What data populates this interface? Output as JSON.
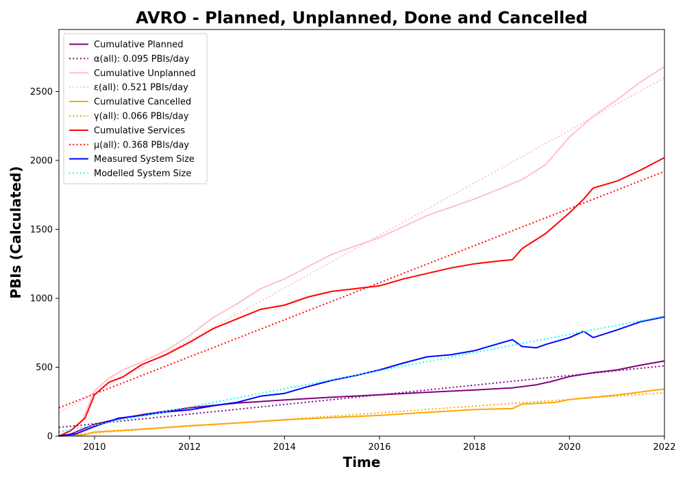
{
  "chart_data": {
    "type": "line",
    "title": "AVRO - Planned, Unplanned, Done  and Cancelled",
    "xlabel": "Time",
    "ylabel": "PBIs (Calculated)",
    "xlim": [
      2009.25,
      2022.0
    ],
    "ylim": [
      0,
      2950
    ],
    "xticks": [
      2010,
      2012,
      2014,
      2016,
      2018,
      2020,
      2022
    ],
    "yticks": [
      0,
      500,
      1000,
      1500,
      2000,
      2500
    ],
    "grid": false,
    "legend_position": "upper-left",
    "series": [
      {
        "name": "Cumulative Planned",
        "color": "#800080",
        "style": "solid",
        "points": [
          [
            2009.25,
            0
          ],
          [
            2009.5,
            15
          ],
          [
            2010,
            85
          ],
          [
            2010.5,
            125
          ],
          [
            2011,
            155
          ],
          [
            2011.5,
            180
          ],
          [
            2012,
            205
          ],
          [
            2013,
            240
          ],
          [
            2014,
            262
          ],
          [
            2015,
            282
          ],
          [
            2016,
            300
          ],
          [
            2017,
            318
          ],
          [
            2018,
            335
          ],
          [
            2018.8,
            350
          ],
          [
            2019.3,
            372
          ],
          [
            2019.6,
            395
          ],
          [
            2020,
            432
          ],
          [
            2020.5,
            460
          ],
          [
            2021,
            480
          ],
          [
            2021.5,
            515
          ],
          [
            2022,
            545
          ]
        ]
      },
      {
        "name": "α(all): 0.095 PBIs/day",
        "color": "#800080",
        "style": "dotted",
        "points": [
          [
            2009.25,
            63
          ],
          [
            2022,
            510
          ]
        ]
      },
      {
        "name": "Cumulative Unplanned",
        "color": "#ffc0cb",
        "style": "solid",
        "points": [
          [
            2009.25,
            0
          ],
          [
            2009.5,
            40
          ],
          [
            2009.75,
            120
          ],
          [
            2010,
            330
          ],
          [
            2010.3,
            420
          ],
          [
            2010.6,
            480
          ],
          [
            2011,
            540
          ],
          [
            2011.5,
            620
          ],
          [
            2012,
            730
          ],
          [
            2012.5,
            860
          ],
          [
            2013,
            960
          ],
          [
            2013.5,
            1070
          ],
          [
            2014,
            1140
          ],
          [
            2014.5,
            1230
          ],
          [
            2015,
            1320
          ],
          [
            2015.5,
            1380
          ],
          [
            2016,
            1440
          ],
          [
            2016.5,
            1520
          ],
          [
            2017,
            1600
          ],
          [
            2017.5,
            1660
          ],
          [
            2018,
            1720
          ],
          [
            2018.5,
            1790
          ],
          [
            2019,
            1860
          ],
          [
            2019.5,
            1970
          ],
          [
            2020,
            2170
          ],
          [
            2020.5,
            2320
          ],
          [
            2021,
            2440
          ],
          [
            2021.5,
            2570
          ],
          [
            2022,
            2680
          ]
        ]
      },
      {
        "name": "ε(all): 0.521 PBIs/day",
        "color": "#ffc0cb",
        "style": "dotted",
        "points": [
          [
            2009.25,
            170
          ],
          [
            2022,
            2600
          ]
        ]
      },
      {
        "name": "Cumulative Cancelled",
        "color": "#ffa500",
        "style": "solid",
        "points": [
          [
            2009.25,
            0
          ],
          [
            2009.8,
            10
          ],
          [
            2010,
            30
          ],
          [
            2011,
            50
          ],
          [
            2012,
            75
          ],
          [
            2013,
            95
          ],
          [
            2014,
            118
          ],
          [
            2015,
            135
          ],
          [
            2016,
            150
          ],
          [
            2017,
            172
          ],
          [
            2018,
            193
          ],
          [
            2018.8,
            200
          ],
          [
            2019,
            232
          ],
          [
            2019.7,
            245
          ],
          [
            2020,
            265
          ],
          [
            2020.5,
            282
          ],
          [
            2021,
            298
          ],
          [
            2021.6,
            325
          ],
          [
            2022,
            342
          ]
        ]
      },
      {
        "name": "γ(all): 0.066 PBIs/day",
        "color": "#ffa500",
        "style": "dotted",
        "points": [
          [
            2009.25,
            5
          ],
          [
            2022,
            315
          ]
        ]
      },
      {
        "name": "Cumulative Services",
        "color": "#ff0000",
        "style": "solid",
        "points": [
          [
            2009.25,
            0
          ],
          [
            2009.5,
            40
          ],
          [
            2009.8,
            130
          ],
          [
            2010,
            300
          ],
          [
            2010.3,
            390
          ],
          [
            2010.6,
            430
          ],
          [
            2011,
            520
          ],
          [
            2011.5,
            590
          ],
          [
            2012,
            680
          ],
          [
            2012.5,
            780
          ],
          [
            2013,
            850
          ],
          [
            2013.5,
            920
          ],
          [
            2014,
            950
          ],
          [
            2014.5,
            1010
          ],
          [
            2015,
            1050
          ],
          [
            2015.5,
            1070
          ],
          [
            2016,
            1090
          ],
          [
            2016.5,
            1140
          ],
          [
            2017,
            1180
          ],
          [
            2017.5,
            1220
          ],
          [
            2018,
            1250
          ],
          [
            2018.5,
            1270
          ],
          [
            2018.8,
            1280
          ],
          [
            2019,
            1360
          ],
          [
            2019.5,
            1470
          ],
          [
            2020,
            1620
          ],
          [
            2020.3,
            1720
          ],
          [
            2020.5,
            1800
          ],
          [
            2021,
            1850
          ],
          [
            2021.5,
            1930
          ],
          [
            2022,
            2020
          ]
        ]
      },
      {
        "name": "μ(all): 0.368 PBIs/day",
        "color": "#ff0000",
        "style": "dotted",
        "points": [
          [
            2009.25,
            205
          ],
          [
            2022,
            1920
          ]
        ]
      },
      {
        "name": "Measured System Size",
        "color": "#0000ff",
        "style": "solid",
        "points": [
          [
            2009.25,
            0
          ],
          [
            2009.6,
            15
          ],
          [
            2010,
            70
          ],
          [
            2010.5,
            130
          ],
          [
            2011,
            150
          ],
          [
            2011.5,
            175
          ],
          [
            2012,
            190
          ],
          [
            2012.5,
            220
          ],
          [
            2013,
            245
          ],
          [
            2013.5,
            290
          ],
          [
            2014,
            310
          ],
          [
            2014.5,
            360
          ],
          [
            2015,
            405
          ],
          [
            2015.5,
            440
          ],
          [
            2016,
            480
          ],
          [
            2016.5,
            530
          ],
          [
            2017,
            575
          ],
          [
            2017.5,
            590
          ],
          [
            2018,
            620
          ],
          [
            2018.5,
            670
          ],
          [
            2018.8,
            700
          ],
          [
            2019,
            650
          ],
          [
            2019.3,
            640
          ],
          [
            2019.5,
            665
          ],
          [
            2020,
            715
          ],
          [
            2020.3,
            760
          ],
          [
            2020.5,
            715
          ],
          [
            2021,
            770
          ],
          [
            2021.5,
            830
          ],
          [
            2022,
            865
          ]
        ]
      },
      {
        "name": "Modelled System Size",
        "color": "#00ffff",
        "style": "dotted",
        "points": [
          [
            2009.25,
            30
          ],
          [
            2022,
            870
          ]
        ]
      }
    ]
  }
}
